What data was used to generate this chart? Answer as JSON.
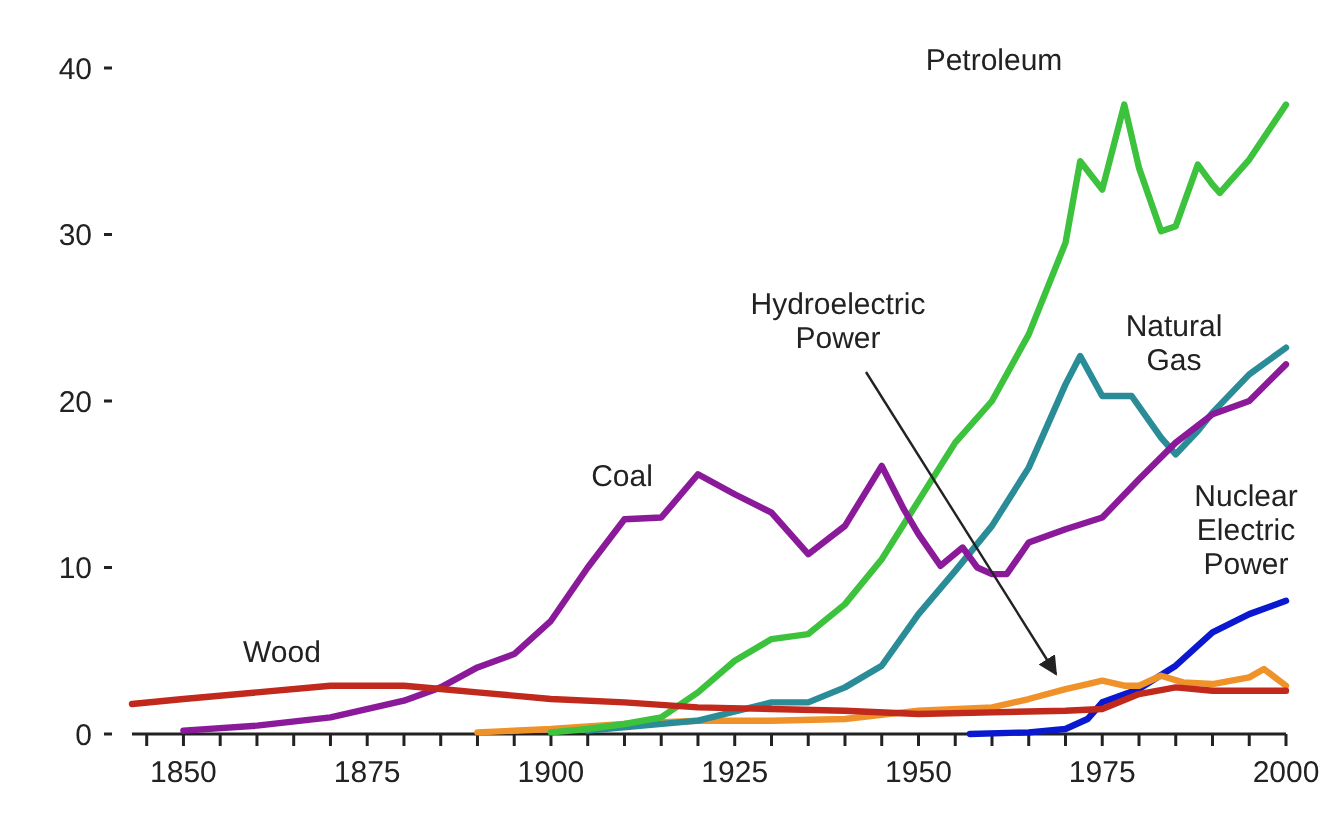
{
  "chart_data": {
    "type": "line",
    "xlim": [
      1843,
      2000
    ],
    "ylim": [
      0,
      40
    ],
    "xticks": [
      {
        "value": 1845,
        "label": null
      },
      1850,
      {
        "value": 1855,
        "label": null
      },
      {
        "value": 1860,
        "label": null
      },
      {
        "value": 1865,
        "label": null
      },
      {
        "value": 1870,
        "label": null
      },
      1875,
      {
        "value": 1880,
        "label": null
      },
      {
        "value": 1885,
        "label": null
      },
      {
        "value": 1890,
        "label": null
      },
      {
        "value": 1895,
        "label": null
      },
      1900,
      {
        "value": 1905,
        "label": null
      },
      {
        "value": 1910,
        "label": null
      },
      {
        "value": 1915,
        "label": null
      },
      {
        "value": 1920,
        "label": null
      },
      1925,
      {
        "value": 1930,
        "label": null
      },
      {
        "value": 1935,
        "label": null
      },
      {
        "value": 1940,
        "label": null
      },
      {
        "value": 1945,
        "label": null
      },
      1950,
      {
        "value": 1955,
        "label": null
      },
      {
        "value": 1960,
        "label": null
      },
      {
        "value": 1965,
        "label": null
      },
      {
        "value": 1970,
        "label": null
      },
      1975,
      {
        "value": 1980,
        "label": null
      },
      {
        "value": 1985,
        "label": null
      },
      {
        "value": 1990,
        "label": null
      },
      {
        "value": 1995,
        "label": null
      },
      2000
    ],
    "yticks": [
      0,
      10,
      20,
      30,
      40
    ],
    "grid": false,
    "marker": "none",
    "line_style": "solid",
    "series": [
      {
        "name": "Nuclear Electric Power",
        "color": "#0a18d0",
        "x": [
          1957,
          1965,
          1970,
          1973,
          1975,
          1980,
          1985,
          1990,
          1995,
          2000
        ],
        "values": [
          0,
          0.1,
          0.3,
          0.9,
          1.9,
          2.7,
          4.1,
          6.1,
          7.2,
          8.0
        ]
      },
      {
        "name": "Hydroelectric Power",
        "color": "#f0922a",
        "x": [
          1890,
          1900,
          1910,
          1920,
          1930,
          1940,
          1950,
          1960,
          1965,
          1970,
          1973,
          1975,
          1978,
          1980,
          1983,
          1986,
          1990,
          1995,
          1997,
          2000
        ],
        "values": [
          0.1,
          0.3,
          0.6,
          0.8,
          0.8,
          0.9,
          1.4,
          1.6,
          2.1,
          2.7,
          3.0,
          3.2,
          2.9,
          2.9,
          3.5,
          3.1,
          3.0,
          3.4,
          3.9,
          2.9
        ]
      },
      {
        "name": "Natural Gas",
        "color": "#2a8c96",
        "x": [
          1905,
          1920,
          1930,
          1935,
          1940,
          1945,
          1950,
          1955,
          1960,
          1965,
          1970,
          1972,
          1975,
          1979,
          1983,
          1985,
          1988,
          1990,
          1995,
          2000
        ],
        "values": [
          0.2,
          0.8,
          1.9,
          1.9,
          2.8,
          4.1,
          7.2,
          9.8,
          12.5,
          16,
          21,
          22.7,
          20.3,
          20.3,
          17.8,
          16.8,
          18.2,
          19.3,
          21.6,
          23.2
        ]
      },
      {
        "name": "Petroleum",
        "color": "#3cc23c",
        "x": [
          1900,
          1905,
          1910,
          1915,
          1920,
          1925,
          1930,
          1935,
          1940,
          1945,
          1950,
          1955,
          1960,
          1965,
          1970,
          1972,
          1975,
          1978,
          1980,
          1983,
          1985,
          1988,
          1990,
          1991,
          1995,
          2000
        ],
        "values": [
          0.1,
          0.3,
          0.6,
          1.0,
          2.5,
          4.4,
          5.7,
          6.0,
          7.8,
          10.5,
          14,
          17.5,
          20,
          24,
          29.5,
          34.4,
          32.7,
          37.8,
          34,
          30.2,
          30.5,
          34.2,
          33,
          32.5,
          34.5,
          37.8
        ]
      },
      {
        "name": "Coal",
        "color": "#8b1a9a",
        "x": [
          1850,
          1860,
          1870,
          1880,
          1885,
          1890,
          1895,
          1900,
          1905,
          1910,
          1915,
          1920,
          1925,
          1930,
          1935,
          1940,
          1945,
          1948,
          1950,
          1953,
          1956,
          1958,
          1960,
          1962,
          1965,
          1970,
          1975,
          1980,
          1985,
          1990,
          1995,
          2000
        ],
        "values": [
          0.2,
          0.5,
          1.0,
          2.0,
          2.8,
          4.0,
          4.8,
          6.8,
          10,
          12.9,
          13.0,
          15.6,
          14.4,
          13.3,
          10.8,
          12.5,
          16.1,
          13.5,
          12,
          10.1,
          11.2,
          10,
          9.6,
          9.6,
          11.5,
          12.3,
          13,
          15.3,
          17.5,
          19.2,
          20,
          22.2
        ]
      },
      {
        "name": "Wood",
        "color": "#c0291b",
        "x": [
          1843,
          1850,
          1860,
          1870,
          1880,
          1885,
          1890,
          1900,
          1910,
          1920,
          1930,
          1940,
          1950,
          1960,
          1970,
          1975,
          1980,
          1985,
          1990,
          2000
        ],
        "values": [
          1.8,
          2.1,
          2.5,
          2.9,
          2.9,
          2.7,
          2.5,
          2.1,
          1.9,
          1.6,
          1.5,
          1.4,
          1.2,
          1.3,
          1.4,
          1.5,
          2.4,
          2.8,
          2.6,
          2.6
        ]
      }
    ]
  }
}
